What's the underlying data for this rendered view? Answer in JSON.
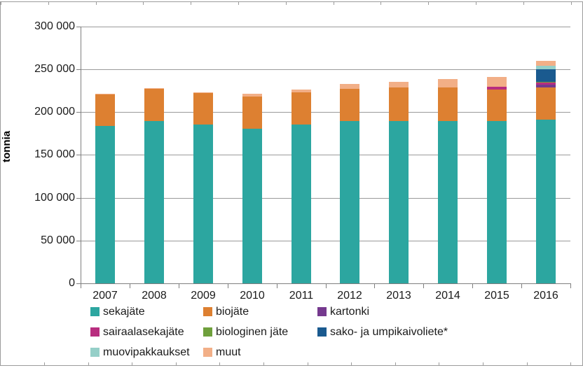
{
  "frame": {
    "background": "#FFFFFF",
    "outer_border_color": "#9C9C9C",
    "axis_color": "#7F7F7F",
    "gridline_color": "#9A9A9A",
    "text_color": "#1A1A1A"
  },
  "chart_data": {
    "type": "bar",
    "stacked": true,
    "title": "",
    "xlabel": "",
    "ylabel": "tonnia",
    "ylim": [
      0,
      300000
    ],
    "ytick_interval": 50000,
    "ytick_labels": [
      "0",
      "50 000",
      "100 000",
      "150 000",
      "200 000",
      "250 000",
      "300 000"
    ],
    "grid": true,
    "legend_position": "bottom",
    "categories": [
      "2007",
      "2008",
      "2009",
      "2010",
      "2011",
      "2012",
      "2013",
      "2014",
      "2015",
      "2016"
    ],
    "series": [
      {
        "name": "sekajäte",
        "color": "#2CA6A0",
        "values": [
          184000,
          189500,
          185500,
          181000,
          185500,
          189500,
          190000,
          189500,
          189600,
          191200
        ]
      },
      {
        "name": "biojäte",
        "color": "#DD8031",
        "values": [
          36500,
          37500,
          36500,
          37000,
          37800,
          37500,
          39200,
          39700,
          37100,
          37900
        ]
      },
      {
        "name": "kartonki",
        "color": "#75398E",
        "values": [
          0,
          0,
          0,
          0,
          0,
          0,
          0,
          0,
          0,
          2900
        ]
      },
      {
        "name": "sairaalasekajäte",
        "color": "#B82D7F",
        "values": [
          0,
          0,
          0,
          0,
          0,
          0,
          0,
          0,
          3300,
          2700
        ]
      },
      {
        "name": "biologinen jäte",
        "color": "#6FA03C",
        "values": [
          0,
          0,
          0,
          0,
          0,
          0,
          0,
          0,
          0,
          500
        ]
      },
      {
        "name": "sako- ja umpikaivoliete*",
        "color": "#1A5A8F",
        "values": [
          0,
          0,
          0,
          0,
          0,
          0,
          0,
          0,
          0,
          15000
        ]
      },
      {
        "name": "muovipakkaukset",
        "color": "#95CFC8",
        "values": [
          0,
          0,
          0,
          0,
          0,
          0,
          0,
          0,
          0,
          4000
        ]
      },
      {
        "name": "muut",
        "color": "#F2AF87",
        "values": [
          1000,
          1500,
          1500,
          3500,
          3200,
          6200,
          6300,
          9300,
          10900,
          6000
        ]
      }
    ]
  }
}
